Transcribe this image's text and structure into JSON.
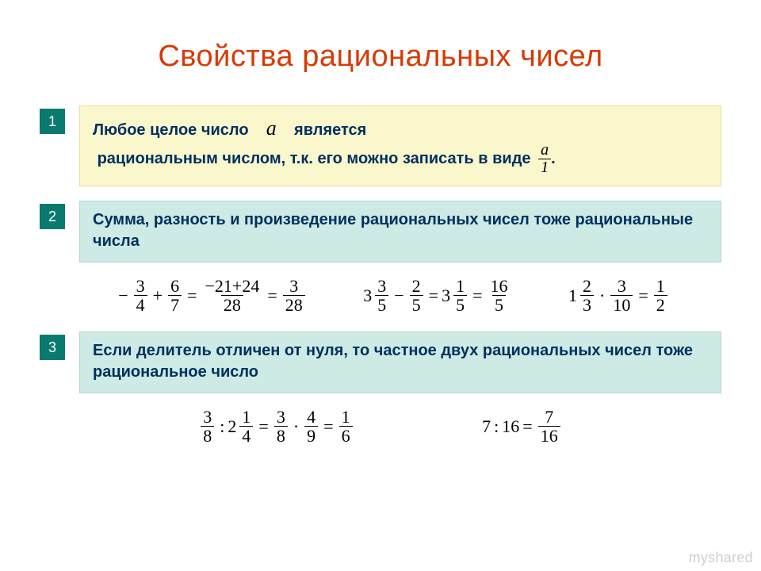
{
  "colors": {
    "title": "#d93a00",
    "numbox_bg": "#0a7a6f",
    "numbox_fg": "#ffffff",
    "box_yellow_bg": "#fbf7cc",
    "box_teal_bg": "#cdeae4",
    "text_dark": "#003060",
    "math_color": "#000000",
    "watermark": "#cfcfcf",
    "page_bg": "#ffffff"
  },
  "title": "Свойства рациональных чисел",
  "items": [
    {
      "num": "1",
      "box_style": "yellow",
      "line1_a": "Любое целое число",
      "var": "а",
      "line1_b": "является",
      "line2": "рациональным числом, т.к. его можно записать в виде",
      "frac_num": "a",
      "frac_den": "1",
      "tail": "."
    },
    {
      "num": "2",
      "box_style": "teal",
      "text": "Сумма, разность и произведение рациональных чисел тоже рациональные числа"
    },
    {
      "num": "3",
      "box_style": "teal",
      "text": "Если делитель отличен от нуля, то частное двух рациональных чисел тоже рациональное число"
    }
  ],
  "math_row1": {
    "e1": {
      "sA": "−",
      "n1": "3",
      "d1": "4",
      "op1": "+",
      "n2": "6",
      "d2": "7",
      "eq": "=",
      "n3": "−21+24",
      "d3": "28",
      "eq2": "=",
      "n4": "3",
      "d4": "28"
    },
    "e2": {
      "w1": "3",
      "n1": "3",
      "d1": "5",
      "op": "−",
      "n2": "2",
      "d2": "5",
      "eq": "=",
      "w2": "3",
      "n3": "1",
      "d3": "5",
      "eq2": "=",
      "n4": "16",
      "d4": "5"
    },
    "e3": {
      "w1": "1",
      "n1": "2",
      "d1": "3",
      "op": "·",
      "n2": "3",
      "d2": "10",
      "eq": "=",
      "n3": "1",
      "d3": "2"
    }
  },
  "math_row2": {
    "e1": {
      "n1": "3",
      "d1": "8",
      "op": ":",
      "w": "2",
      "n2": "1",
      "d2": "4",
      "eq": "=",
      "n3": "3",
      "d3": "8",
      "op2": "·",
      "n4": "4",
      "d4": "9",
      "eq2": "=",
      "n5": "1",
      "d5": "6"
    },
    "e2": {
      "a": "7",
      "op": ":",
      "b": "16",
      "eq": "=",
      "n": "7",
      "d": "16"
    }
  },
  "watermark": "myshared"
}
